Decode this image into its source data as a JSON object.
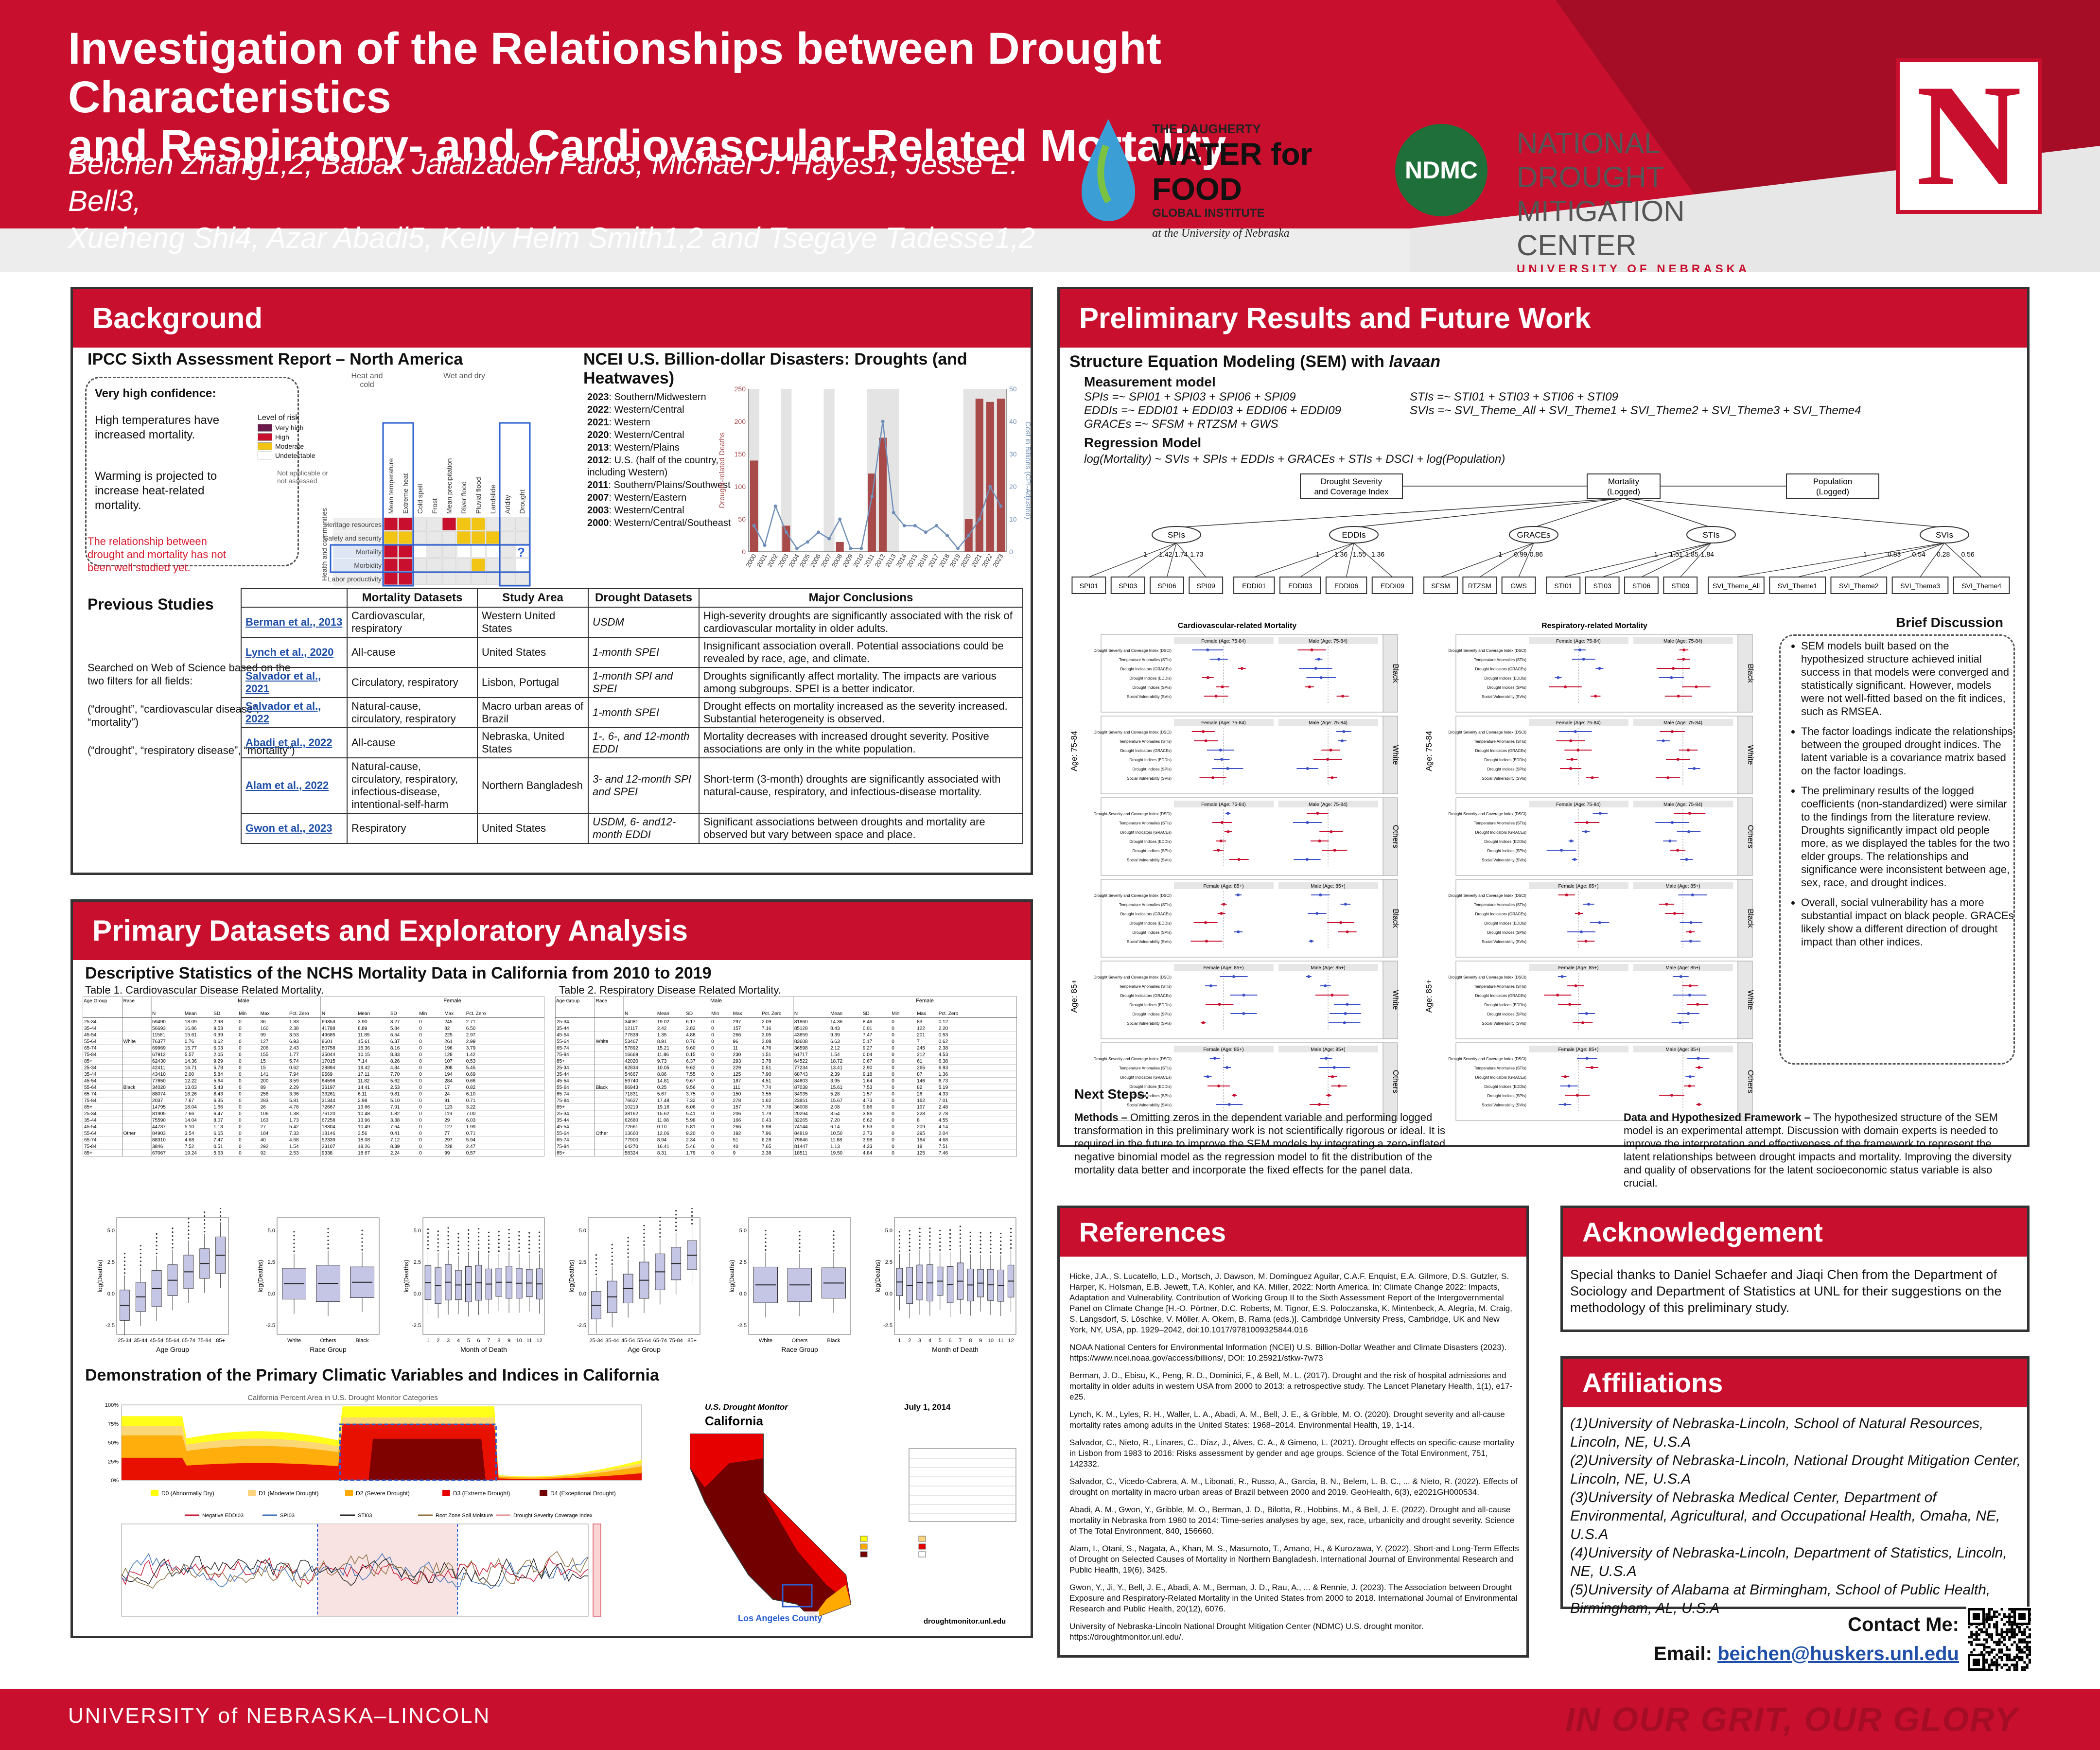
{
  "header": {
    "title_line1": "Investigation of the Relationships between Drought Characteristics",
    "title_line2": "and Respiratory- and Cardiovascular-Related Mortality",
    "authors_line1": "Beichen Zhang1,2, Babak Jalalzadeh Fard3, Michael J. Hayes1, Jesse E. Bell3,",
    "authors_line2": "Xueheng Shi4, Azar Abadi5, Kelly Helm Smith1,2 and Tsegaye Tadesse1,2",
    "logo_wff_1": "THE DAUGHERTY",
    "logo_wff_2": "WATER for FOOD",
    "logo_wff_3": "GLOBAL INSTITUTE",
    "logo_wff_4": "at the University of Nebraska",
    "logo_ndmc_badge": "NDMC",
    "logo_ndmc_1": "NATIONAL DROUGHT",
    "logo_ndmc_2": "MITIGATION CENTER",
    "logo_ndmc_3": "UNIVERSITY OF NEBRASKA",
    "n_logo": "N"
  },
  "background": {
    "heading": "Background",
    "ipcc_title": "IPCC Sixth Assessment Report – North America",
    "ipcc_conf_title": "Very high confidence:",
    "ipcc_conf_1": "High temperatures have increased mortality.",
    "ipcc_conf_2": "Warming is projected to increase heat-related mortality.",
    "ipcc_gap": "The relationship between drought and mortality has not been well studied yet.",
    "ipcc_risk_title": "Level of risk",
    "ipcc_risk_levels": [
      "Very high",
      "High",
      "Moderate",
      "Undetectable"
    ],
    "ipcc_na": "Not applicable or not assessed",
    "ipcc_col_groups": [
      "Heat and cold",
      "Wet and dry"
    ],
    "ipcc_cols": [
      "Mean temperature",
      "Extreme heat",
      "Cold spell",
      "Frost",
      "Mean precipitation",
      "River flood",
      "Pluvial flood",
      "Landslide",
      "Aridity",
      "Drought"
    ],
    "ipcc_rows": [
      "Heritage resources",
      "Safety and security",
      "Mortality",
      "Morbidity",
      "Labor productivity"
    ],
    "ipcc_row_group": "Health and communities",
    "ncei_title": "NCEI U.S. Billion-dollar Disasters: Droughts (and Heatwaves)",
    "ncei_events": [
      {
        "year": "2023",
        "text": ": Southern/Midwestern"
      },
      {
        "year": "2022",
        "text": ": Western/Central"
      },
      {
        "year": "2021",
        "text": ": Western"
      },
      {
        "year": "2020",
        "text": ": Western/Central"
      },
      {
        "year": "2013",
        "text": ": Western/Plains"
      },
      {
        "year": "2012",
        "text": ": U.S. (half of the country, including Western)"
      },
      {
        "year": "2011",
        "text": ": Southern/Plains/Southwest"
      },
      {
        "year": "2007",
        "text": ": Western/Eastern"
      },
      {
        "year": "2003",
        "text": ": Western/Central"
      },
      {
        "year": "2000",
        "text": ": Western/Central/Southeast"
      }
    ],
    "ncei_ylabel_left": "Drought-related Deaths",
    "ncei_ylabel_right": "Cost in Billions (CPI-Adjusted)",
    "previous_title": "Previous Studies",
    "previous_text": "Searched on Web of Science based on the two filters for all fields:",
    "previous_filter1": "(“drought”, “cardiovascular disease”, “mortality”)",
    "previous_filter2": "(“drought”, “respiratory disease”, “mortality”)",
    "table_headers": [
      "",
      "Mortality Datasets",
      "Study Area",
      "Drought Datasets",
      "Major Conclusions"
    ],
    "studies": [
      {
        "ref": "Berman et al., 2013",
        "mort": "Cardiovascular, respiratory",
        "area": "Western United States",
        "drought": "USDM",
        "conc": "High-severity droughts are significantly associated with the risk of cardiovascular mortality in older adults."
      },
      {
        "ref": "Lynch et al., 2020",
        "mort": "All-cause",
        "area": "United States",
        "drought": "1-month SPEI",
        "conc": "Insignificant association overall. Potential associations could be revealed by race, age, and climate."
      },
      {
        "ref": "Salvador et al., 2021",
        "mort": "Circulatory, respiratory",
        "area": "Lisbon, Portugal",
        "drought": "1-month SPI and SPEI",
        "conc": "Droughts significantly affect mortality. The impacts are various among subgroups. SPEI is a better indicator."
      },
      {
        "ref": "Salvador et al., 2022",
        "mort": "Natural-cause, circulatory, respiratory",
        "area": "Macro urban areas of Brazil",
        "drought": "1-month SPEI",
        "conc": "Drought effects on mortality increased as the severity increased. Substantial heterogeneity is observed."
      },
      {
        "ref": "Abadi et al., 2022",
        "mort": "All-cause",
        "area": "Nebraska, United States",
        "drought": "1-, 6-, and 12-month EDDI",
        "conc": "Mortality decreases with increased drought severity. Positive associations are only in the white population."
      },
      {
        "ref": "Alam et al., 2022",
        "mort": "Natural-cause, circulatory, respiratory, infectious-disease, intentional-self-harm",
        "area": "Northern Bangladesh",
        "drought": "3- and 12-month SPI and SPEI",
        "conc": "Short-term (3-month) droughts are significantly associated with natural-cause, respiratory, and infectious-disease mortality."
      },
      {
        "ref": "Gwon et al., 2023",
        "mort": "Respiratory",
        "area": "United States",
        "drought": "USDM, 6- and12-month EDDI",
        "conc": "Significant associations between droughts and mortality are observed but vary between space and place."
      }
    ]
  },
  "primary": {
    "heading": "Primary Datasets and Exploratory Analysis",
    "desc_title": "Descriptive Statistics of the NCHS Mortality Data in California from 2010 to 2019",
    "table1_caption": "Table 1. Cardiovascular Disease Related Mortality.",
    "table2_caption": "Table 2. Respiratory Disease Related Mortality.",
    "stat_cols": [
      "Age Group",
      "Race",
      "N",
      "Mean",
      "SD",
      "Min",
      "Max",
      "Percentage of Zero",
      "N",
      "Mean",
      "SD",
      "Min",
      "Max",
      "Percentage of Zero"
    ],
    "stat_groups": [
      "Male",
      "Female"
    ],
    "stat_races": [
      "White",
      "Black",
      "Other"
    ],
    "stat_ages": [
      "25-34",
      "35-44",
      "45-54",
      "55-64",
      "65-74",
      "75-84",
      "85+"
    ],
    "box_xlabels": [
      "Age Group",
      "Race Group",
      "Month of Death"
    ],
    "box_ylabel": "log(Deaths)",
    "box_age_ticks": [
      "25-34",
      "35-44",
      "45-54",
      "55-64",
      "65-74",
      "75-84",
      "85+"
    ],
    "box_race_ticks": [
      "White",
      "Others",
      "Black"
    ],
    "climatic_title": "Demonstration of the Primary Climatic Variables and Indices in California",
    "usdm_chart_title": "California Percent Area in U.S. Drought Monitor Categories",
    "usdm_legend": [
      "D0 (Abnormally Dry)",
      "D1 (Moderate Drought)",
      "D2 (Severe Drought)",
      "D3 (Extreme Drought)",
      "D4 (Exceptional Drought)"
    ],
    "index_legend": [
      "Negative EDDI03",
      "SPI03",
      "STI03",
      "Root Zone Soil Moisture",
      "Drought Severity Coverage Index"
    ],
    "map_title": "U.S. Drought Monitor",
    "map_state": "California",
    "map_date": "July 1, 2014",
    "map_county": "Los Angeles County",
    "map_url": "droughtmonitor.unl.edu"
  },
  "prelim": {
    "heading": "Preliminary Results and Future Work",
    "sem_title": "Structure Equation Modeling (SEM) with lavaan",
    "measure_title": "Measurement model",
    "measure_lines": [
      "SPIs =~ SPI01 + SPI03 + SPI06 + SPI09",
      "EDDIs =~ EDDI01 + EDDI03 + EDDI06 + EDDI09",
      "GRACEs =~ SFSM + RTZSM + GWS"
    ],
    "measure_lines_right": [
      "STIs =~ STI01 + STI03 + STI06 + STI09",
      "SVIs =~ SVI_Theme_All + SVI_Theme1 + SVI_Theme2 + SVI_Theme3 + SVI_Theme4"
    ],
    "regression_title": "Regression Model",
    "regression_line": "log(Mortality) ~ SVIs + SPIs + EDDIs + GRACEs + STIs + DSCI + log(Population)",
    "diagram_top": [
      "Drought Severity and Coverage Index",
      "Mortality (Logged)",
      "Population (Logged)"
    ],
    "diagram_latent": [
      "SPIs",
      "EDDIs",
      "GRACEs",
      "STIs",
      "SVIs"
    ],
    "diagram_observed": [
      "SPI01",
      "SPI03",
      "SPI06",
      "SPI09",
      "EDDI01",
      "EDDI03",
      "EDDI06",
      "EDDI09",
      "SFSM",
      "RTZSM",
      "GWS",
      "STI01",
      "STI03",
      "STI06",
      "STI09",
      "SVI_Theme_All",
      "SVI_Theme1",
      "SVI_Theme2",
      "SVI_Theme3",
      "SVI_Theme4"
    ],
    "loadings": [
      [
        "1",
        "1.42",
        "1.74",
        "1.73"
      ],
      [
        "1",
        "1.36",
        "1.55",
        "1.36"
      ],
      [
        "1",
        "0.99",
        "0.86"
      ],
      [
        "1",
        "1.51",
        "1.85",
        "1.84"
      ],
      [
        "1",
        "0.83",
        "0.54",
        "0.28",
        "0.56"
      ]
    ],
    "forest_panel_titles": [
      "Cardiovascular-related Mortality",
      "Respiratory-related Mortality"
    ],
    "forest_row_labels": [
      "Black",
      "White",
      "Others",
      "Black",
      "White",
      "Others"
    ],
    "forest_age_labels": [
      "Age: 75-84",
      "Age: 85+"
    ],
    "forest_sub_male_young": "Male (Age: 75-84)",
    "forest_sub_female_young": "Female (Age: 75-84)",
    "forest_sub_male_old": "Male (Age: 85+)",
    "forest_sub_female_old": "Female (Age: 85+)",
    "forest_y_labels": [
      "Drought Severity and Coverage Index (DSCI)",
      "Temperature Anomalies (STIs)",
      "Drought Indicators (GRACEs)",
      "Drought Indices (EDDIs)",
      "Drought Indices (SPIs)",
      "Social Vulnerability (SVIs)"
    ],
    "discussion_title": "Brief Discussion",
    "discussion": [
      "SEM models built based on the hypothesized structure achieved initial success in that models were converged and statistically significant. However, models were not well-fitted based on the fit indices, such as RMSEA.",
      "The factor loadings indicate the relationships between the grouped drought indices. The latent variable is a covariance matrix based on the factor loadings.",
      "The preliminary results of the logged coefficients (non-standardized) were similar to the findings from the literature review. Droughts significantly impact old people more, as we displayed the tables for the two elder groups. The relationships and significance were inconsistent between age, sex, race, and drought indices.",
      "Overall, social vulnerability has a more substantial impact on black people. GRACEs likely show a different direction of drought impact than other indices."
    ],
    "next_title": "Next Steps:",
    "next_methods_label": "Methods –",
    "next_methods": " Omitting zeros in the dependent variable and performing logged transformation in this preliminary work is not scientifically rigorous or ideal. It is required in the future to improve the SEM models by integrating a zero-inflated negative binomial model as the regression model to fit the distribution of the mortality data better and incorporate the fixed effects for the panel data.",
    "next_data_label": "Data and Hypothesized Framework –",
    "next_data": " The hypothesized structure of the SEM model is an experimental attempt. Discussion with domain experts is needed to improve the interpretation and effectiveness of the framework to represent the latent relationships between drought impacts and mortality. Improving the diversity and quality of observations for the latent socioeconomic status variable is also crucial."
  },
  "references": {
    "heading": "References",
    "items": [
      "Hicke, J.A., S. Lucatello, L.D., Mortsch, J. Dawson, M. Domínguez Aguilar, C.A.F. Enquist, E.A. Gilmore, D.S. Gutzler, S. Harper, K. Holsman, E.B. Jewett, T.A. Kohler, and KA. Miller, 2022: North America. In: Climate Change 2022: Impacts, Adaptation and Vulnerability. Contribution of Working Group II to the Sixth Assessment Report of the Intergovernmental Panel on Climate Change [H.-O. Pörtner, D.C. Roberts, M. Tignor, E.S. Poloczanska, K. Mintenbeck, A. Alegría, M. Craig, S. Langsdorf, S. Löschke, V. Möller, A. Okem, B. Rama (eds.)]. Cambridge University Press, Cambridge, UK and New York, NY, USA, pp. 1929–2042, doi:10.1017/9781009325844.016",
      "NOAA National Centers for Environmental Information (NCEI) U.S. Billion-Dollar Weather and Climate Disasters (2023). https://www.ncei.noaa.gov/access/billions/, DOI: 10.25921/stkw-7w73",
      "Berman, J. D., Ebisu, K., Peng, R. D., Dominici, F., & Bell, M. L. (2017). Drought and the risk of hospital admissions and mortality in older adults in western USA from 2000 to 2013: a retrospective study. The Lancet Planetary Health, 1(1), e17-e25.",
      "Lynch, K. M., Lyles, R. H., Waller, L. A., Abadi, A. M., Bell, J. E., & Gribble, M. O. (2020). Drought severity and all-cause mortality rates among adults in the United States: 1968–2014. Environmental Health, 19, 1-14.",
      "Salvador, C., Nieto, R., Linares, C., Díaz, J., Alves, C. A., & Gimeno, L. (2021). Drought effects on specific-cause mortality in Lisbon from 1983 to 2016: Risks assessment by gender and age groups. Science of the Total Environment, 751, 142332.",
      "Salvador, C., Vicedo-Cabrera, A. M., Libonati, R., Russo, A., Garcia, B. N., Belem, L. B. C., ... & Nieto, R. (2022). Effects of drought on mortality in macro urban areas of Brazil between 2000 and 2019. GeoHealth, 6(3), e2021GH000534.",
      "Abadi, A. M., Gwon, Y., Gribble, M. O., Berman, J. D., Bilotta, R., Hobbins, M., & Bell, J. E. (2022). Drought and all-cause mortality in Nebraska from 1980 to 2014: Time-series analyses by age, sex, race, urbanicity and drought severity. Science of The Total Environment, 840, 156660.",
      "Alam, I., Otani, S., Nagata, A., Khan, M. S., Masumoto, T., Amano, H., & Kurozawa, Y. (2022). Short-and Long-Term Effects of Drought on Selected Causes of Mortality in Northern Bangladesh. International Journal of Environmental Research and Public Health, 19(6), 3425.",
      "Gwon, Y., Ji, Y., Bell, J. E., Abadi, A. M., Berman, J. D., Rau, A., ... & Rennie, J. (2023). The Association between Drought Exposure and Respiratory-Related Mortality in the United States from 2000 to 2018. International Journal of Environmental Research and Public Health, 20(12), 6076.",
      "University of Nebraska-Lincoln National Drought Mitigation Center (NDMC) U.S. drought monitor. https://droughtmonitor.unl.edu/."
    ]
  },
  "ack": {
    "heading": "Acknowledgement",
    "text": "Special thanks to Daniel Schaefer and Jiaqi Chen from the Department of Sociology and Department of Statistics at UNL for their suggestions on the methodology of this preliminary study."
  },
  "affiliations": {
    "heading": "Affiliations",
    "items": [
      "(1)University of Nebraska-Lincoln, School of Natural Resources, Lincoln, NE, U.S.A",
      "(2)University of Nebraska-Lincoln, National Drought Mitigation Center, Lincoln, NE, U.S.A",
      "(3)University of Nebraska Medical Center, Department of Environmental, Agricultural, and Occupational Health, Omaha, NE, U.S.A",
      "(4)University of Nebraska-Lincoln, Department of Statistics, Lincoln, NE, U.S.A",
      "(5)University of Alabama at Birmingham, School of Public Health, Birmingham, AL, U.S.A"
    ]
  },
  "contact": {
    "label": "Contact Me:",
    "email_label": "Email: ",
    "email": "beichen@huskers.unl.edu"
  },
  "footer": {
    "university": "UNIVERSITY of NEBRASKA–LINCOLN",
    "slogan": "IN OUR GRIT, OUR GLORY"
  },
  "colors": {
    "nebraska_red": "#c8102e",
    "drought_bar": "#a8494a",
    "cost_line": "#6f8fb9"
  },
  "chart_data": [
    {
      "type": "bar",
      "title": "",
      "categories": [
        "2000",
        "2001",
        "2002",
        "2003",
        "2004",
        "2005",
        "2006",
        "2007",
        "2008",
        "2009",
        "2010",
        "2011",
        "2012",
        "2013",
        "2014",
        "2015",
        "2016",
        "2017",
        "2018",
        "2019",
        "2020",
        "2021",
        "2022",
        "2023"
      ],
      "series": [
        {
          "name": "Drought-related Deaths",
          "values": [
            140,
            0,
            0,
            40,
            0,
            0,
            0,
            0,
            15,
            0,
            0,
            120,
            175,
            0,
            0,
            0,
            0,
            0,
            0,
            0,
            50,
            235,
            230,
            235
          ]
        },
        {
          "name": "Cost in Billions (CPI-Adjusted)",
          "values": [
            8,
            2,
            14,
            6,
            1,
            3,
            6,
            4,
            10,
            1,
            1,
            17,
            40,
            12,
            8,
            8,
            6,
            8,
            5,
            1,
            5,
            10,
            20,
            14
          ]
        }
      ],
      "ylabel": "Drought-related Deaths",
      "ylim": [
        0,
        250
      ]
    },
    {
      "type": "area",
      "title": "California Percent Area in U.S. Drought Monitor Categories",
      "series_names": [
        "D0 (Abnormally Dry)",
        "D1 (Moderate Drought)",
        "D2 (Severe Drought)",
        "D3 (Extreme Drought)",
        "D4 (Exceptional Drought)"
      ],
      "ylim": [
        0,
        100
      ]
    }
  ]
}
